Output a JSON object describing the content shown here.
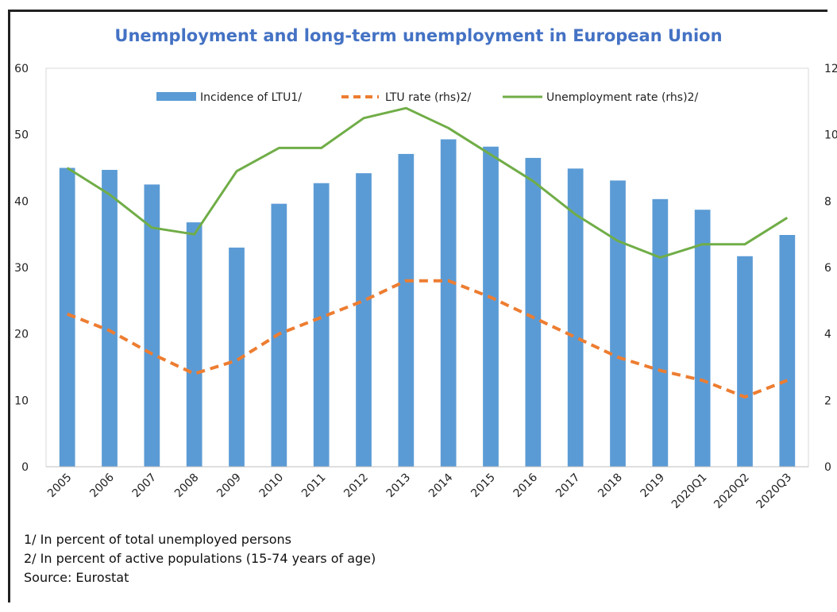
{
  "chart_data": {
    "type": "bar",
    "title": "Unemployment and long-term unemployment in European Union",
    "categories": [
      "2005",
      "2006",
      "2007",
      "2008",
      "2009",
      "2010",
      "2011",
      "2012",
      "2013",
      "2014",
      "2015",
      "2016",
      "2017",
      "2018",
      "2019",
      "2020Q1",
      "2020Q2",
      "2020Q3"
    ],
    "ylim_left": [
      0,
      60
    ],
    "yticks_left": [
      "0",
      "10",
      "20",
      "30",
      "40",
      "50",
      "60"
    ],
    "ylim_right": [
      0,
      12
    ],
    "yticks_right": [
      "0",
      "2",
      "4",
      "6",
      "8",
      "10",
      "12"
    ],
    "legend_position": "top",
    "series": [
      {
        "name": "Incidence of LTU1/",
        "axis": "left",
        "kind": "bar",
        "color": "#5b9bd5",
        "values": [
          45.0,
          44.7,
          42.5,
          36.8,
          33.0,
          39.6,
          42.7,
          44.2,
          47.1,
          49.3,
          48.2,
          46.5,
          44.9,
          43.1,
          40.3,
          38.7,
          31.7,
          34.9
        ]
      },
      {
        "name": "LTU rate (rhs)2/",
        "axis": "right",
        "kind": "line-dashed",
        "color": "#ed7d31",
        "values": [
          4.6,
          4.1,
          3.4,
          2.8,
          3.2,
          4.0,
          4.5,
          5.0,
          5.6,
          5.6,
          5.1,
          4.5,
          3.9,
          3.3,
          2.9,
          2.6,
          2.1,
          2.6
        ]
      },
      {
        "name": "Unemployment rate (rhs)2/",
        "axis": "right",
        "kind": "line",
        "color": "#70ad47",
        "values": [
          9.0,
          8.2,
          7.2,
          7.0,
          8.9,
          9.6,
          9.6,
          10.5,
          10.8,
          10.2,
          9.4,
          8.6,
          7.6,
          6.8,
          6.3,
          6.7,
          6.7,
          7.5
        ]
      }
    ]
  },
  "notes": [
    "1/ In percent of total unemployed persons",
    "2/ In percent of active populations (15-74 years of age)",
    "Source: Eurostat"
  ]
}
